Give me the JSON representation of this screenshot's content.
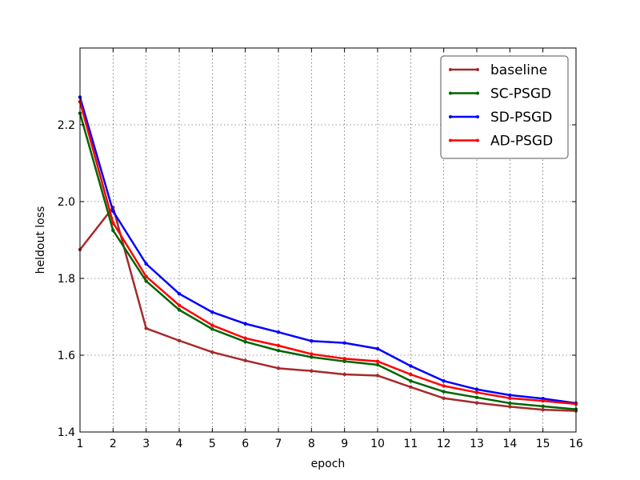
{
  "chart_data": {
    "type": "line",
    "title": "",
    "xlabel": "epoch",
    "ylabel": "heldout loss",
    "xlim": [
      1,
      16
    ],
    "ylim": [
      1.4,
      2.4
    ],
    "xticks": [
      "1",
      "2",
      "3",
      "4",
      "5",
      "6",
      "7",
      "8",
      "9",
      "10",
      "11",
      "12",
      "13",
      "14",
      "15",
      "16"
    ],
    "yticks": [
      "1.4",
      "1.6",
      "1.8",
      "2.0",
      "2.2"
    ],
    "grid": true,
    "legend_position": "top-right",
    "x": [
      1,
      2,
      3,
      4,
      5,
      6,
      7,
      8,
      9,
      10,
      11,
      12,
      13,
      14,
      15,
      16
    ],
    "series": [
      {
        "name": "baseline",
        "color": "#a52a2a",
        "values": [
          1.875,
          1.985,
          1.67,
          1.638,
          1.608,
          1.586,
          1.566,
          1.559,
          1.55,
          1.547,
          1.517,
          1.488,
          1.476,
          1.466,
          1.458,
          1.455
        ]
      },
      {
        "name": "SC-PSGD",
        "color": "#006400",
        "values": [
          2.23,
          1.925,
          1.793,
          1.718,
          1.668,
          1.635,
          1.612,
          1.595,
          1.584,
          1.575,
          1.533,
          1.505,
          1.49,
          1.475,
          1.467,
          1.459
        ]
      },
      {
        "name": "SD-PSGD",
        "color": "#0000ff",
        "values": [
          2.272,
          1.975,
          1.838,
          1.76,
          1.712,
          1.682,
          1.66,
          1.637,
          1.632,
          1.617,
          1.572,
          1.533,
          1.511,
          1.496,
          1.487,
          1.475
        ]
      },
      {
        "name": "AD-PSGD",
        "color": "#ff0000",
        "values": [
          2.26,
          1.945,
          1.805,
          1.73,
          1.678,
          1.644,
          1.625,
          1.603,
          1.591,
          1.584,
          1.55,
          1.52,
          1.503,
          1.488,
          1.481,
          1.473
        ]
      }
    ]
  }
}
